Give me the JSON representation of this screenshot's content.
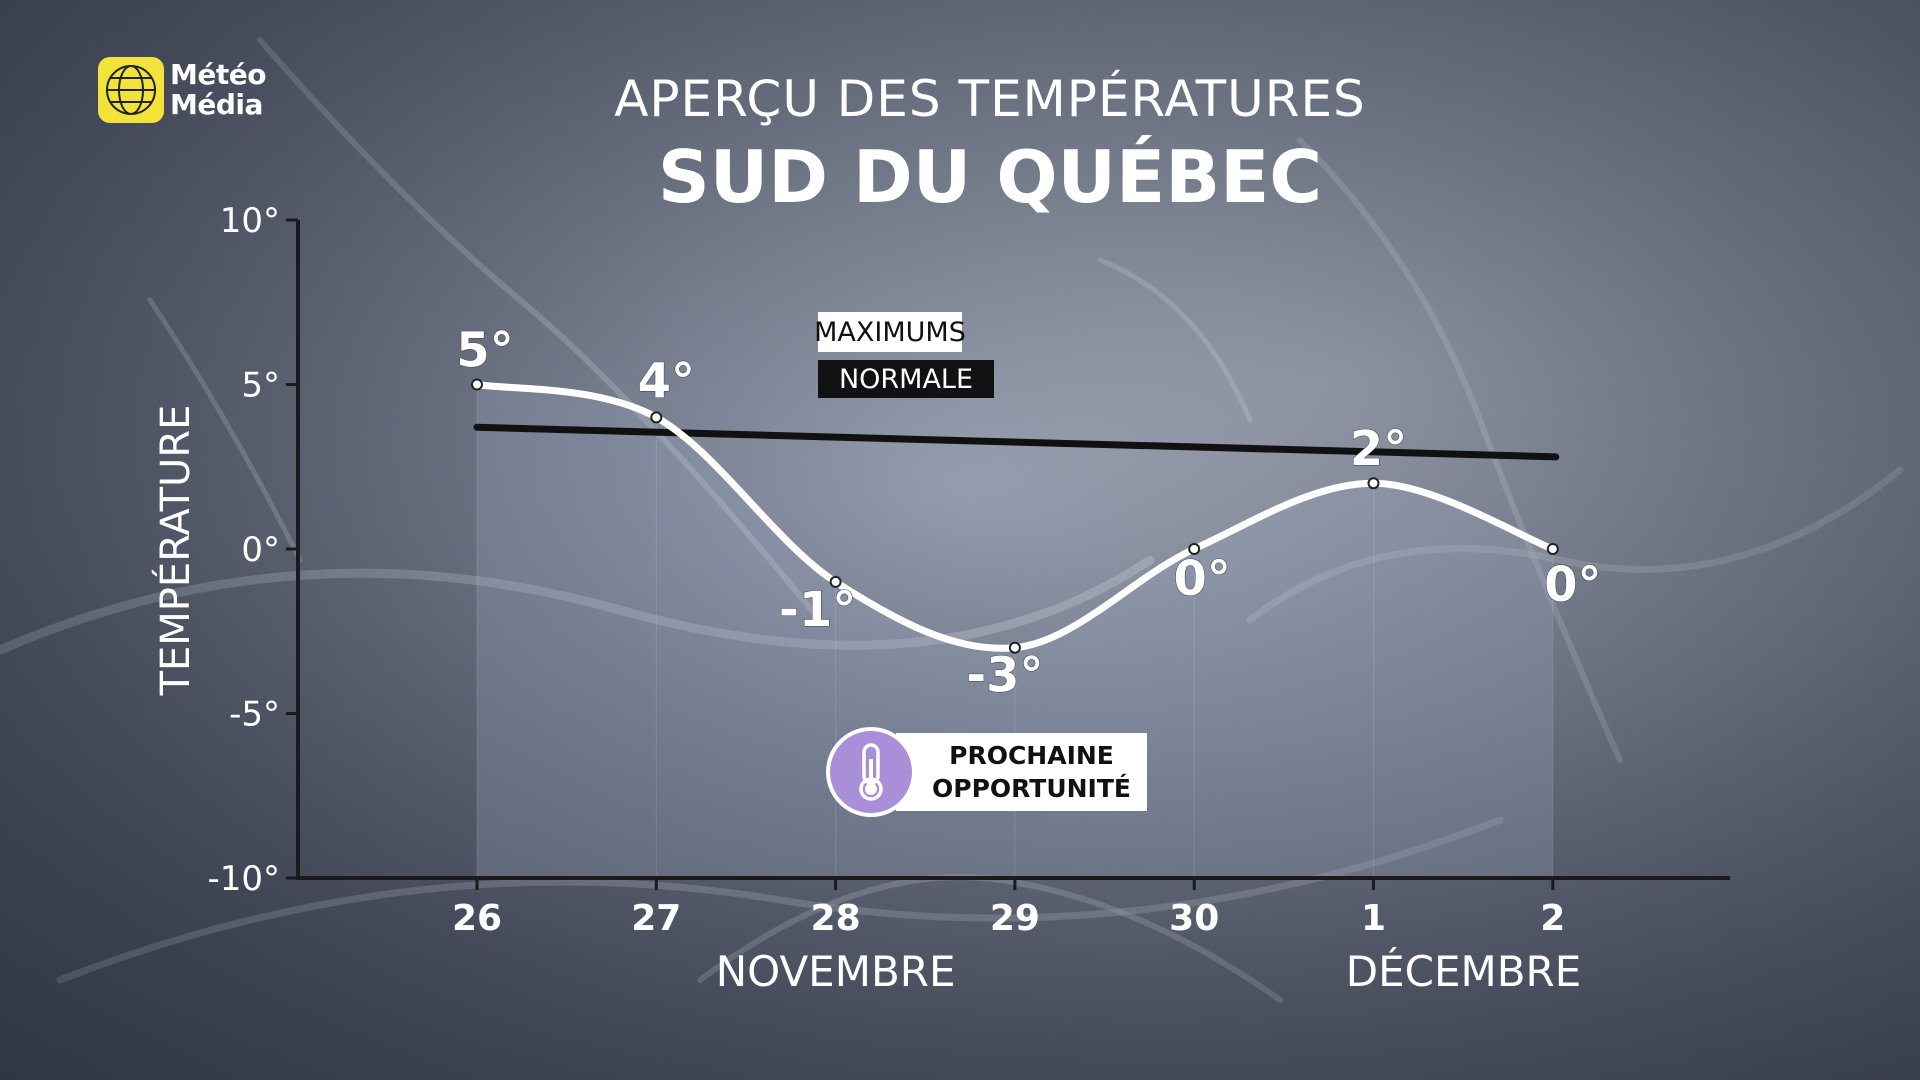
{
  "logo": {
    "line1": "Météo",
    "line2": "Média",
    "name": "meteo-media-logo"
  },
  "title": "APERÇU DES TEMPÉRATURES",
  "subtitle": "SUD DU QUÉBEC",
  "legend": {
    "maximums": "MAXIMUMS",
    "normale": "NORMALE"
  },
  "opportunity": {
    "line1": "PROCHAINE",
    "line2": "OPPORTUNITÉ",
    "icon": "thermometer-icon"
  },
  "colors": {
    "maximums_line": "#ffffff",
    "normale_line": "#111111",
    "accent_purple": "#a98ed8",
    "logo_yellow": "#f2e23a"
  },
  "chart_data": {
    "type": "line",
    "title": "APERÇU DES TEMPÉRATURES",
    "subtitle": "SUD DU QUÉBEC",
    "ylabel": "TEMPÉRATURE",
    "ylim": [
      -10,
      10
    ],
    "y_ticks": [
      10,
      5,
      0,
      -5,
      -10
    ],
    "y_tick_labels": [
      "10°",
      "5°",
      "0°",
      "-5°",
      "-10°"
    ],
    "categories": [
      "26",
      "27",
      "28",
      "29",
      "30",
      "1",
      "2"
    ],
    "month_labels": [
      {
        "label": "NOVEMBRE",
        "under_category": "28"
      },
      {
        "label": "DÉCEMBRE",
        "under_category": "1"
      }
    ],
    "series": [
      {
        "name": "MAXIMUMS",
        "values": [
          5,
          4,
          -1,
          -3,
          0,
          2,
          0
        ],
        "labels": [
          "5°",
          "4°",
          "-1°",
          "-3°",
          "0°",
          "2°",
          "0°"
        ]
      },
      {
        "name": "NORMALE",
        "values": [
          3.7,
          3.6,
          3.4,
          3.3,
          3.2,
          3.0,
          2.8
        ]
      }
    ],
    "grid": false,
    "legend_position": "top-center"
  }
}
